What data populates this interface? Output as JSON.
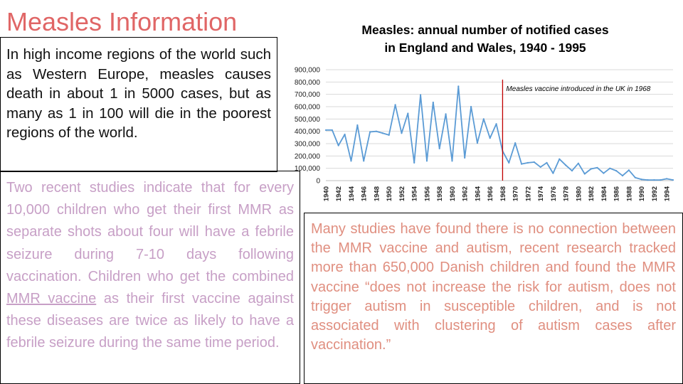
{
  "slide": {
    "title": "Measles Information",
    "box1_text": "In high income regions of the world such as Western Europe, measles causes death in about 1 in 5000 cases, but as many as 1 in 100 will die in the poorest regions of the world.",
    "box2_before": "Two recent studies indicate that for every 10,000 children who get their first MMR as separate shots about four will have a febrile seizure during 7-10 days following vaccination. Children who get the combined ",
    "box2_link": "MMR vaccine",
    "box2_after": " as their first vaccine against these diseases are twice as likely to have a febrile seizure during the same time period.",
    "box3_text": "Many studies have found there is no connection between the MMR vaccine and autism, recent research tracked more than 650,000 Danish children and found the MMR vaccine “does not increase the risk for autism, does not trigger autism in susceptible children, and is not associated with clustering of autism cases after vaccination.”"
  },
  "colors": {
    "title": "#e06666",
    "series": "#5b9bd5",
    "vaccine_line": "#c00000",
    "box2_text": "#c79fc6",
    "box3_text": "#e08f80"
  },
  "chart_data": {
    "type": "line",
    "title": [
      "Measles: annual number of notified cases",
      "in England and Wales, 1940 - 1995"
    ],
    "x": [
      1940,
      1941,
      1942,
      1943,
      1944,
      1945,
      1946,
      1947,
      1948,
      1949,
      1950,
      1951,
      1952,
      1953,
      1954,
      1955,
      1956,
      1957,
      1958,
      1959,
      1960,
      1961,
      1962,
      1963,
      1964,
      1965,
      1966,
      1967,
      1968,
      1969,
      1970,
      1971,
      1972,
      1973,
      1974,
      1975,
      1976,
      1977,
      1978,
      1979,
      1980,
      1981,
      1982,
      1983,
      1984,
      1985,
      1986,
      1987,
      1988,
      1989,
      1990,
      1991,
      1992,
      1993,
      1994,
      1995
    ],
    "series": [
      {
        "values": [
          410000,
          410000,
          285000,
          375000,
          160000,
          450000,
          160000,
          395000,
          400000,
          385000,
          370000,
          615000,
          385000,
          545000,
          145000,
          695000,
          160000,
          635000,
          260000,
          540000,
          160000,
          765000,
          185000,
          600000,
          305000,
          500000,
          345000,
          460000,
          240000,
          145000,
          305000,
          135000,
          145000,
          150000,
          110000,
          145000,
          60000,
          175000,
          125000,
          80000,
          140000,
          55000,
          95000,
          105000,
          60000,
          100000,
          80000,
          40000,
          85000,
          25000,
          10000,
          5000,
          5000,
          5000,
          15000,
          5000
        ]
      }
    ],
    "yticks": [
      0,
      100000,
      200000,
      300000,
      400000,
      500000,
      600000,
      700000,
      800000,
      900000
    ],
    "ytick_labels": [
      "0",
      "100,000",
      "200,000",
      "300,000",
      "400,000",
      "500,000",
      "600,000",
      "700,000",
      "800,000",
      "900,000"
    ],
    "xtick_labels": [
      "1940",
      "1942",
      "1944",
      "1946",
      "1948",
      "1950",
      "1952",
      "1954",
      "1956",
      "1958",
      "1960",
      "1962",
      "1964",
      "1966",
      "1968",
      "1970",
      "1972",
      "1974",
      "1976",
      "1978",
      "1980",
      "1982",
      "1984",
      "1986",
      "1988",
      "1990",
      "1992",
      "1994"
    ],
    "ylim": [
      0,
      900000
    ],
    "xlim": [
      1940,
      1995
    ],
    "grid": true,
    "annotation": {
      "x": 1968,
      "text": "Measles vaccine introduced in the UK in 1968"
    }
  }
}
